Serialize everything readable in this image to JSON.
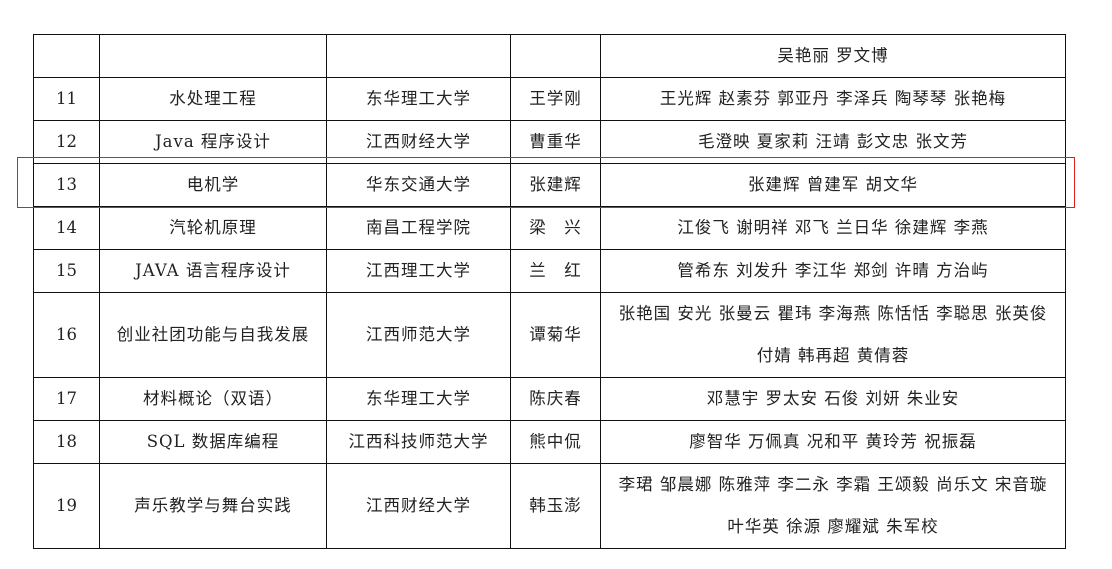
{
  "table": {
    "rows": [
      {
        "no": "",
        "course": "",
        "school": "",
        "leader": "",
        "members": "吴艳丽  罗文博"
      },
      {
        "no": "11",
        "course": "水处理工程",
        "school": "东华理工大学",
        "leader": "王学刚",
        "members": "王光辉  赵素芬  郭亚丹  李泽兵  陶琴琴  张艳梅"
      },
      {
        "no": "12",
        "course": "Java 程序设计",
        "school": "江西财经大学",
        "leader": "曹重华",
        "members": "毛澄映  夏家莉  汪靖  彭文忠  张文芳"
      },
      {
        "no": "13",
        "course": "电机学",
        "school": "华东交通大学",
        "leader": "张建辉",
        "members": "张建辉   曾建军  胡文华"
      },
      {
        "no": "14",
        "course": "汽轮机原理",
        "school": "南昌工程学院",
        "leader": "梁　兴",
        "members": "江俊飞  谢明祥  邓飞  兰日华  徐建辉  李燕"
      },
      {
        "no": "15",
        "course": "JAVA 语言程序设计",
        "school": "江西理工大学",
        "leader": "兰　红",
        "members": "管希东  刘发升  李江华  郑剑  许晴  方治屿"
      },
      {
        "no": "16",
        "course": "创业社团功能与自我发展",
        "school": "江西师范大学",
        "leader": "谭菊华",
        "members": "张艳国  安光  张曼云  瞿玮  李海燕  陈恬恬  李聪思  张英俊  付婧  韩再超  黄倩蓉"
      },
      {
        "no": "17",
        "course": "材料概论（双语）",
        "school": "东华理工大学",
        "leader": "陈庆春",
        "members": "邓慧宇  罗太安  石俊  刘妍  朱业安"
      },
      {
        "no": "18",
        "course": "SQL 数据库编程",
        "school": "江西科技师范大学",
        "leader": "熊中侃",
        "members": "廖智华  万佩真  况和平  黄玲芳  祝振磊"
      },
      {
        "no": "19",
        "course": "声乐教学与舞台实践",
        "school": "江西财经大学",
        "leader": "韩玉澎",
        "members": "李珺  邹晨娜  陈雅萍  李二永  李霜  王颂毅  尚乐文  宋音璇  叶华英  徐源  廖耀斌  朱军校"
      }
    ]
  },
  "highlight": {
    "row": "13",
    "color": "#e02020"
  }
}
